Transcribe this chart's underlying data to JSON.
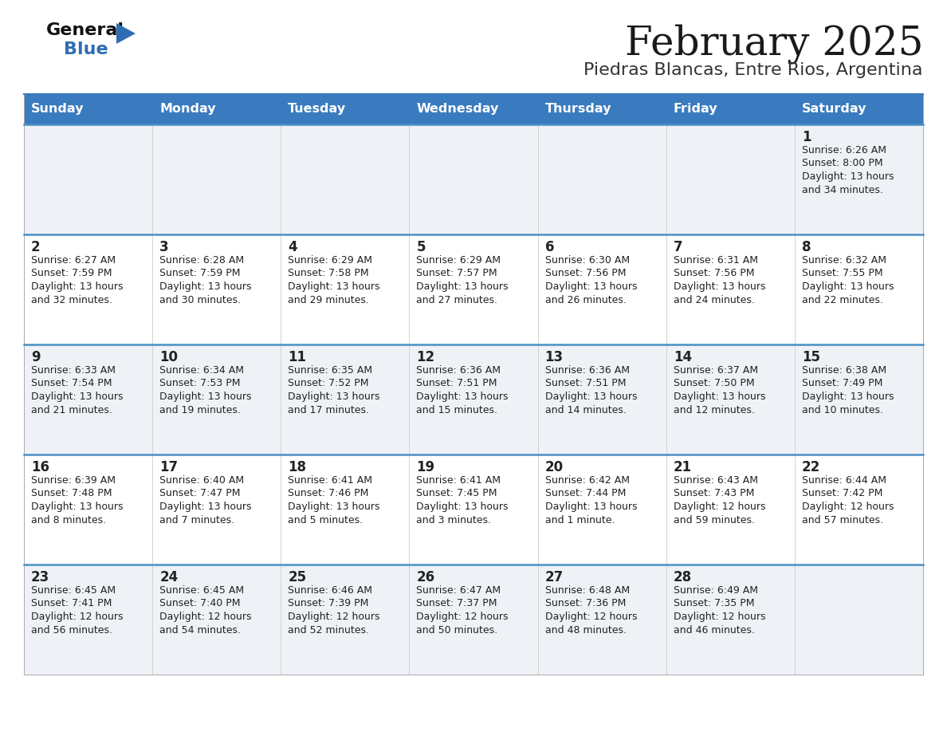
{
  "title": "February 2025",
  "subtitle": "Piedras Blancas, Entre Rios, Argentina",
  "days_of_week": [
    "Sunday",
    "Monday",
    "Tuesday",
    "Wednesday",
    "Thursday",
    "Friday",
    "Saturday"
  ],
  "header_bg": "#3a7bbf",
  "header_text": "#ffffff",
  "cell_bg_light": "#eef2f7",
  "cell_bg_white": "#ffffff",
  "row_line_color": "#4a90c4",
  "text_color": "#222222",
  "calendar_data": [
    [
      null,
      null,
      null,
      null,
      null,
      null,
      {
        "day": "1",
        "sunrise": "6:26 AM",
        "sunset": "8:00 PM",
        "daylight": "13 hours\nand 34 minutes."
      }
    ],
    [
      {
        "day": "2",
        "sunrise": "6:27 AM",
        "sunset": "7:59 PM",
        "daylight": "13 hours\nand 32 minutes."
      },
      {
        "day": "3",
        "sunrise": "6:28 AM",
        "sunset": "7:59 PM",
        "daylight": "13 hours\nand 30 minutes."
      },
      {
        "day": "4",
        "sunrise": "6:29 AM",
        "sunset": "7:58 PM",
        "daylight": "13 hours\nand 29 minutes."
      },
      {
        "day": "5",
        "sunrise": "6:29 AM",
        "sunset": "7:57 PM",
        "daylight": "13 hours\nand 27 minutes."
      },
      {
        "day": "6",
        "sunrise": "6:30 AM",
        "sunset": "7:56 PM",
        "daylight": "13 hours\nand 26 minutes."
      },
      {
        "day": "7",
        "sunrise": "6:31 AM",
        "sunset": "7:56 PM",
        "daylight": "13 hours\nand 24 minutes."
      },
      {
        "day": "8",
        "sunrise": "6:32 AM",
        "sunset": "7:55 PM",
        "daylight": "13 hours\nand 22 minutes."
      }
    ],
    [
      {
        "day": "9",
        "sunrise": "6:33 AM",
        "sunset": "7:54 PM",
        "daylight": "13 hours\nand 21 minutes."
      },
      {
        "day": "10",
        "sunrise": "6:34 AM",
        "sunset": "7:53 PM",
        "daylight": "13 hours\nand 19 minutes."
      },
      {
        "day": "11",
        "sunrise": "6:35 AM",
        "sunset": "7:52 PM",
        "daylight": "13 hours\nand 17 minutes."
      },
      {
        "day": "12",
        "sunrise": "6:36 AM",
        "sunset": "7:51 PM",
        "daylight": "13 hours\nand 15 minutes."
      },
      {
        "day": "13",
        "sunrise": "6:36 AM",
        "sunset": "7:51 PM",
        "daylight": "13 hours\nand 14 minutes."
      },
      {
        "day": "14",
        "sunrise": "6:37 AM",
        "sunset": "7:50 PM",
        "daylight": "13 hours\nand 12 minutes."
      },
      {
        "day": "15",
        "sunrise": "6:38 AM",
        "sunset": "7:49 PM",
        "daylight": "13 hours\nand 10 minutes."
      }
    ],
    [
      {
        "day": "16",
        "sunrise": "6:39 AM",
        "sunset": "7:48 PM",
        "daylight": "13 hours\nand 8 minutes."
      },
      {
        "day": "17",
        "sunrise": "6:40 AM",
        "sunset": "7:47 PM",
        "daylight": "13 hours\nand 7 minutes."
      },
      {
        "day": "18",
        "sunrise": "6:41 AM",
        "sunset": "7:46 PM",
        "daylight": "13 hours\nand 5 minutes."
      },
      {
        "day": "19",
        "sunrise": "6:41 AM",
        "sunset": "7:45 PM",
        "daylight": "13 hours\nand 3 minutes."
      },
      {
        "day": "20",
        "sunrise": "6:42 AM",
        "sunset": "7:44 PM",
        "daylight": "13 hours\nand 1 minute."
      },
      {
        "day": "21",
        "sunrise": "6:43 AM",
        "sunset": "7:43 PM",
        "daylight": "12 hours\nand 59 minutes."
      },
      {
        "day": "22",
        "sunrise": "6:44 AM",
        "sunset": "7:42 PM",
        "daylight": "12 hours\nand 57 minutes."
      }
    ],
    [
      {
        "day": "23",
        "sunrise": "6:45 AM",
        "sunset": "7:41 PM",
        "daylight": "12 hours\nand 56 minutes."
      },
      {
        "day": "24",
        "sunrise": "6:45 AM",
        "sunset": "7:40 PM",
        "daylight": "12 hours\nand 54 minutes."
      },
      {
        "day": "25",
        "sunrise": "6:46 AM",
        "sunset": "7:39 PM",
        "daylight": "12 hours\nand 52 minutes."
      },
      {
        "day": "26",
        "sunrise": "6:47 AM",
        "sunset": "7:37 PM",
        "daylight": "12 hours\nand 50 minutes."
      },
      {
        "day": "27",
        "sunrise": "6:48 AM",
        "sunset": "7:36 PM",
        "daylight": "12 hours\nand 48 minutes."
      },
      {
        "day": "28",
        "sunrise": "6:49 AM",
        "sunset": "7:35 PM",
        "daylight": "12 hours\nand 46 minutes."
      },
      null
    ]
  ]
}
